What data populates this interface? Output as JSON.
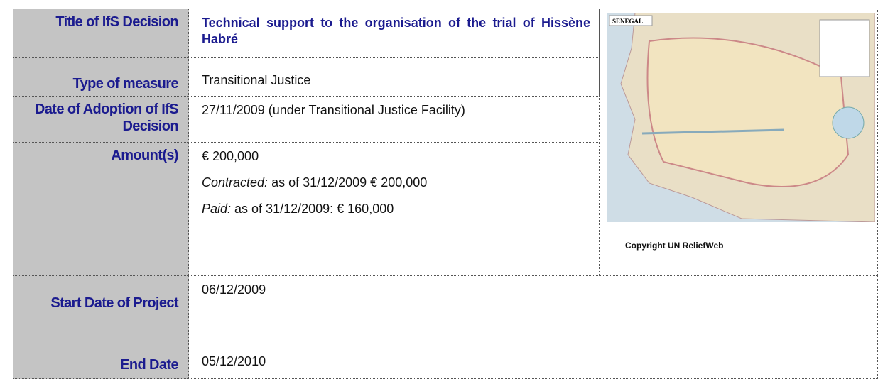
{
  "rows": [
    {
      "label": "Title of IfS Decision",
      "value": "Technical support to the organisation of the trial of Hissène Habré"
    },
    {
      "label": "Type of measure",
      "value": "Transitional Justice"
    },
    {
      "label": "Date of Adoption of IfS Decision",
      "value": "27/11/2009 (under Transitional Justice Facility)"
    },
    {
      "label": "Amount(s)",
      "lines": [
        {
          "text": "€ 200,000"
        },
        {
          "prefix": "Contracted:",
          "text": " as of 31/12/2009 € 200,000"
        },
        {
          "prefix": "Paid:",
          "text": " as of 31/12/2009: € 160,000"
        }
      ]
    },
    {
      "label": "Start Date of Project",
      "value": "06/12/2009"
    },
    {
      "label": "End Date",
      "value": "05/12/2010"
    }
  ],
  "map": {
    "label": "SENEGAL",
    "caption": "Copyright UN ReliefWeb"
  }
}
